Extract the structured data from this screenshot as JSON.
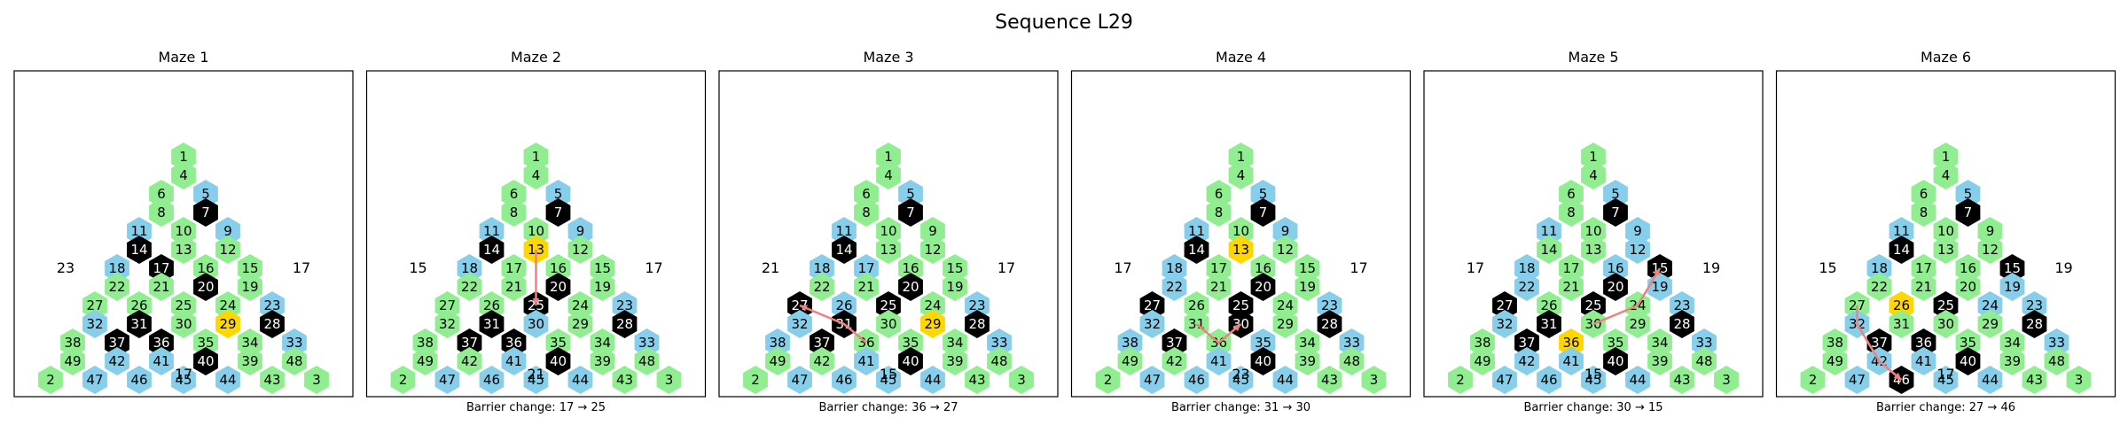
{
  "title": "Sequence L29",
  "colors": {
    "open": "#90ee90",
    "blue": "#87ceeb",
    "wall": "#000000",
    "current": "#ffd700",
    "path": "#f08080",
    "frame": "#000000"
  },
  "cell_numbers": {
    "row0": [
      "1"
    ],
    "row1": [
      "4"
    ],
    "row2": [
      "6",
      "5"
    ],
    "row3": [
      "8",
      "7"
    ],
    "row4": [
      "11",
      "10",
      "9"
    ],
    "row5": [
      "14",
      "13",
      "12"
    ],
    "row6": [
      "18",
      "17",
      "16",
      "15"
    ],
    "row7": [
      "22",
      "21",
      "20",
      "19"
    ],
    "row8": [
      "27",
      "26",
      "25",
      "24",
      "23"
    ],
    "row9": [
      "32",
      "31",
      "30",
      "29",
      "28"
    ],
    "row10": [
      "38",
      "37",
      "36",
      "35",
      "34",
      "33"
    ],
    "row11": [
      "49",
      "42",
      "41",
      "40",
      "39",
      "48"
    ],
    "row12": [
      "2",
      "47",
      "46",
      "45",
      "44",
      "43",
      "3"
    ]
  },
  "mazes": [
    {
      "title": "Maze 1",
      "left": "23",
      "right": "17",
      "bottom": "17",
      "caption": "",
      "blue": [
        "5",
        "9",
        "11",
        "18",
        "23",
        "32",
        "33",
        "42",
        "46",
        "41",
        "45",
        "44",
        "47"
      ],
      "black": [
        "7",
        "14",
        "17",
        "20",
        "28",
        "31",
        "36",
        "37",
        "40"
      ],
      "gold": [
        "29"
      ],
      "path": []
    },
    {
      "title": "Maze 2",
      "left": "15",
      "right": "17",
      "bottom": "21",
      "caption": "Barrier change: 17 → 25",
      "blue": [
        "5",
        "9",
        "11",
        "18",
        "23",
        "30",
        "33",
        "45",
        "44",
        "47",
        "46",
        "41"
      ],
      "black": [
        "7",
        "14",
        "20",
        "25",
        "28",
        "31",
        "36",
        "37",
        "40"
      ],
      "gold": [
        "13"
      ],
      "path": [
        "13",
        "25"
      ]
    },
    {
      "title": "Maze 3",
      "left": "21",
      "right": "17",
      "bottom": "15",
      "caption": "Barrier change: 36 → 27",
      "blue": [
        "5",
        "11",
        "17",
        "18",
        "26",
        "23",
        "32",
        "38",
        "33",
        "45",
        "44",
        "47",
        "46",
        "41"
      ],
      "black": [
        "7",
        "14",
        "20",
        "25",
        "27",
        "28",
        "31",
        "37",
        "40"
      ],
      "gold": [
        "29"
      ],
      "path": [
        "36",
        "31",
        "27"
      ]
    },
    {
      "title": "Maze 4",
      "left": "17",
      "right": "17",
      "bottom": "23",
      "caption": "Barrier change: 31 → 30",
      "blue": [
        "5",
        "9",
        "11",
        "18",
        "22",
        "23",
        "32",
        "35",
        "33",
        "38",
        "45",
        "44",
        "47",
        "46",
        "41"
      ],
      "black": [
        "7",
        "14",
        "20",
        "25",
        "27",
        "28",
        "30",
        "37",
        "40"
      ],
      "gold": [
        "13"
      ],
      "path": [
        "31",
        "36",
        "30"
      ]
    },
    {
      "title": "Maze 5",
      "left": "17",
      "right": "19",
      "bottom": "15",
      "caption": "Barrier change: 30 → 15",
      "blue": [
        "5",
        "9",
        "11",
        "12",
        "16",
        "18",
        "19",
        "22",
        "23",
        "32",
        "33",
        "42",
        "45",
        "44",
        "47",
        "46",
        "41"
      ],
      "black": [
        "7",
        "15",
        "20",
        "25",
        "27",
        "28",
        "31",
        "37",
        "40"
      ],
      "gold": [
        "36"
      ],
      "path": [
        "30",
        "24",
        "15"
      ]
    },
    {
      "title": "Maze 6",
      "left": "15",
      "right": "19",
      "bottom": "17",
      "caption": "Barrier change: 27 → 46",
      "blue": [
        "5",
        "11",
        "18",
        "19",
        "23",
        "24",
        "32",
        "33",
        "42",
        "41",
        "45",
        "44",
        "47"
      ],
      "black": [
        "7",
        "14",
        "15",
        "25",
        "28",
        "36",
        "37",
        "40",
        "46"
      ],
      "gold": [
        "26"
      ],
      "path": [
        "27",
        "32",
        "42",
        "46"
      ]
    }
  ]
}
